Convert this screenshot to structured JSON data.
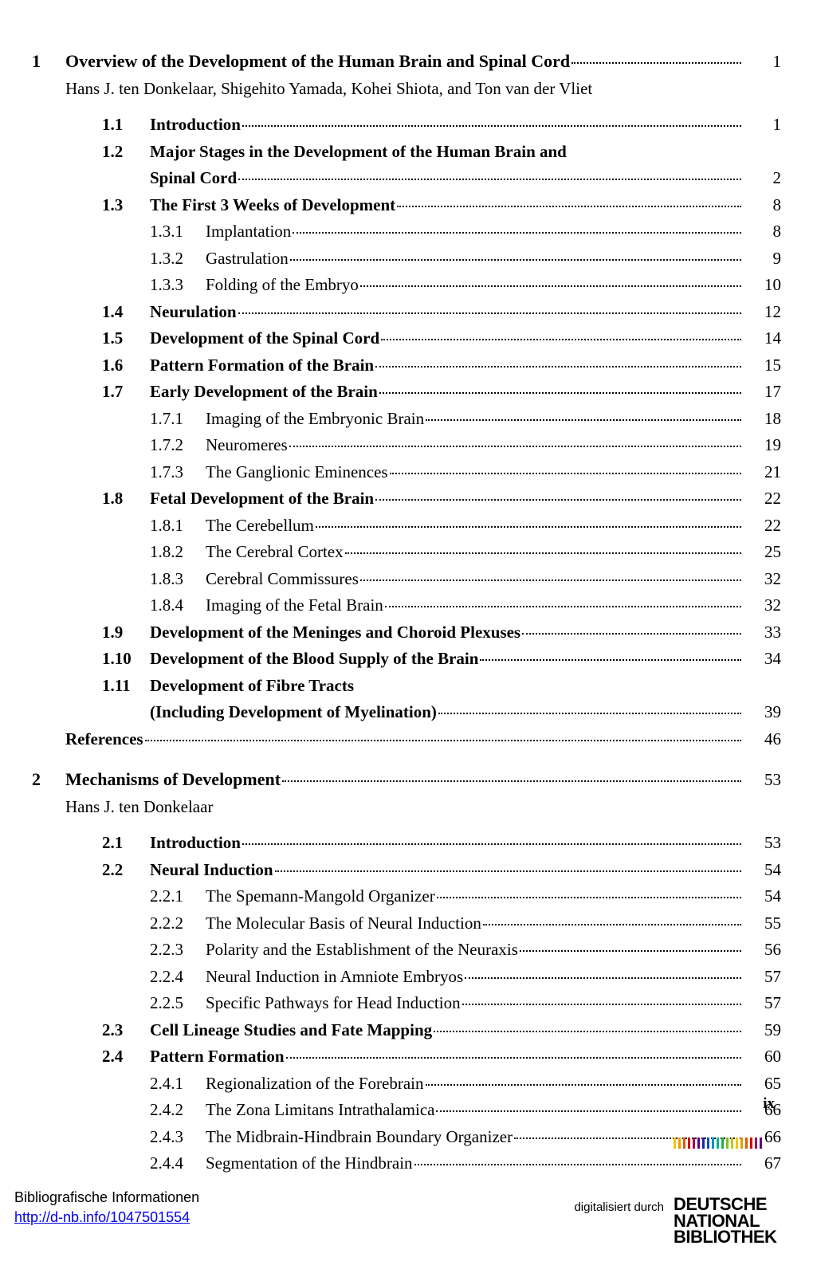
{
  "page_roman": "ix",
  "footer": {
    "biblio": "Bibliografische Informationen",
    "url": "http://d-nb.info/1047501554",
    "digitized": "digitalisiert durch",
    "logo_lines": [
      "DEUTSCHE",
      "NATIONAL",
      "BIBLIOTHEK"
    ],
    "stripe_colors": [
      "#f0c800",
      "#e89c00",
      "#e05a00",
      "#d00000",
      "#a00050",
      "#5a0080",
      "#2020a0",
      "#0050c0",
      "#0090c0",
      "#00b090",
      "#20b040",
      "#80c020",
      "#c0c800",
      "#f0c800",
      "#e89c00",
      "#e05a00",
      "#d00000",
      "#a00050",
      "#5a0080"
    ]
  },
  "chapters": [
    {
      "num": "1",
      "title": "Overview of the Development of the Human Brain and Spinal Cord",
      "page": "1",
      "authors": "Hans J. ten Donkelaar, Shigehito Yamada, Kohei Shiota, and Ton van der Vliet",
      "sections": [
        {
          "num": "1.1",
          "title": "Introduction",
          "page": "1"
        },
        {
          "num": "1.2",
          "title_lines": [
            "Major Stages in the Development of the Human Brain and",
            "Spinal Cord"
          ],
          "page": "2"
        },
        {
          "num": "1.3",
          "title": "The First 3 Weeks of Development",
          "page": "8",
          "subs": [
            {
              "num": "1.3.1",
              "title": "Implantation",
              "page": "8"
            },
            {
              "num": "1.3.2",
              "title": "Gastrulation",
              "page": "9"
            },
            {
              "num": "1.3.3",
              "title": "Folding of the Embryo",
              "page": "10"
            }
          ]
        },
        {
          "num": "1.4",
          "title": "Neurulation",
          "page": "12"
        },
        {
          "num": "1.5",
          "title": "Development of the Spinal Cord",
          "page": "14"
        },
        {
          "num": "1.6",
          "title": "Pattern Formation of the Brain",
          "page": "15"
        },
        {
          "num": "1.7",
          "title": "Early Development of the Brain",
          "page": "17",
          "subs": [
            {
              "num": "1.7.1",
              "title": "Imaging of the Embryonic Brain",
              "page": "18"
            },
            {
              "num": "1.7.2",
              "title": "Neuromeres",
              "page": "19"
            },
            {
              "num": "1.7.3",
              "title": "The Ganglionic Eminences",
              "page": "21"
            }
          ]
        },
        {
          "num": "1.8",
          "title": "Fetal Development of the Brain",
          "page": "22",
          "subs": [
            {
              "num": "1.8.1",
              "title": "The Cerebellum",
              "page": "22"
            },
            {
              "num": "1.8.2",
              "title": "The Cerebral Cortex",
              "page": "25"
            },
            {
              "num": "1.8.3",
              "title": "Cerebral Commissures",
              "page": "32"
            },
            {
              "num": "1.8.4",
              "title": "Imaging of the Fetal Brain",
              "page": "32"
            }
          ]
        },
        {
          "num": "1.9",
          "title": "Development of the Meninges and Choroid Plexuses",
          "page": "33"
        },
        {
          "num": "1.10",
          "title": "Development of the Blood Supply of the Brain",
          "page": "34"
        },
        {
          "num": "1.11",
          "title_lines": [
            "Development of Fibre Tracts",
            "(Including Development of Myelination)"
          ],
          "page": "39"
        }
      ],
      "references": {
        "title": "References",
        "page": "46"
      }
    },
    {
      "num": "2",
      "title": "Mechanisms of Development",
      "page": "53",
      "authors": "Hans J. ten Donkelaar",
      "sections": [
        {
          "num": "2.1",
          "title": "Introduction",
          "page": "53"
        },
        {
          "num": "2.2",
          "title": "Neural Induction",
          "page": "54",
          "subs": [
            {
              "num": "2.2.1",
              "title": "The Spemann-Mangold Organizer",
              "page": "54"
            },
            {
              "num": "2.2.2",
              "title": "The Molecular Basis of Neural Induction",
              "page": "55"
            },
            {
              "num": "2.2.3",
              "title": "Polarity and the Establishment of the Neuraxis",
              "page": "56"
            },
            {
              "num": "2.2.4",
              "title": "Neural Induction in Amniote Embryos",
              "page": "57"
            },
            {
              "num": "2.2.5",
              "title": "Specific Pathways for Head Induction",
              "page": "57"
            }
          ]
        },
        {
          "num": "2.3",
          "title": "Cell Lineage Studies and Fate Mapping",
          "page": "59"
        },
        {
          "num": "2.4",
          "title": "Pattern Formation",
          "page": "60",
          "subs": [
            {
              "num": "2.4.1",
              "title": "Regionalization of the Forebrain",
              "page": "65"
            },
            {
              "num": "2.4.2",
              "title": "The Zona Limitans Intrathalamica",
              "page": "66"
            },
            {
              "num": "2.4.3",
              "title": "The Midbrain-Hindbrain Boundary Organizer",
              "page": "66"
            },
            {
              "num": "2.4.4",
              "title": "Segmentation of the Hindbrain",
              "page": "67"
            }
          ]
        }
      ]
    }
  ]
}
